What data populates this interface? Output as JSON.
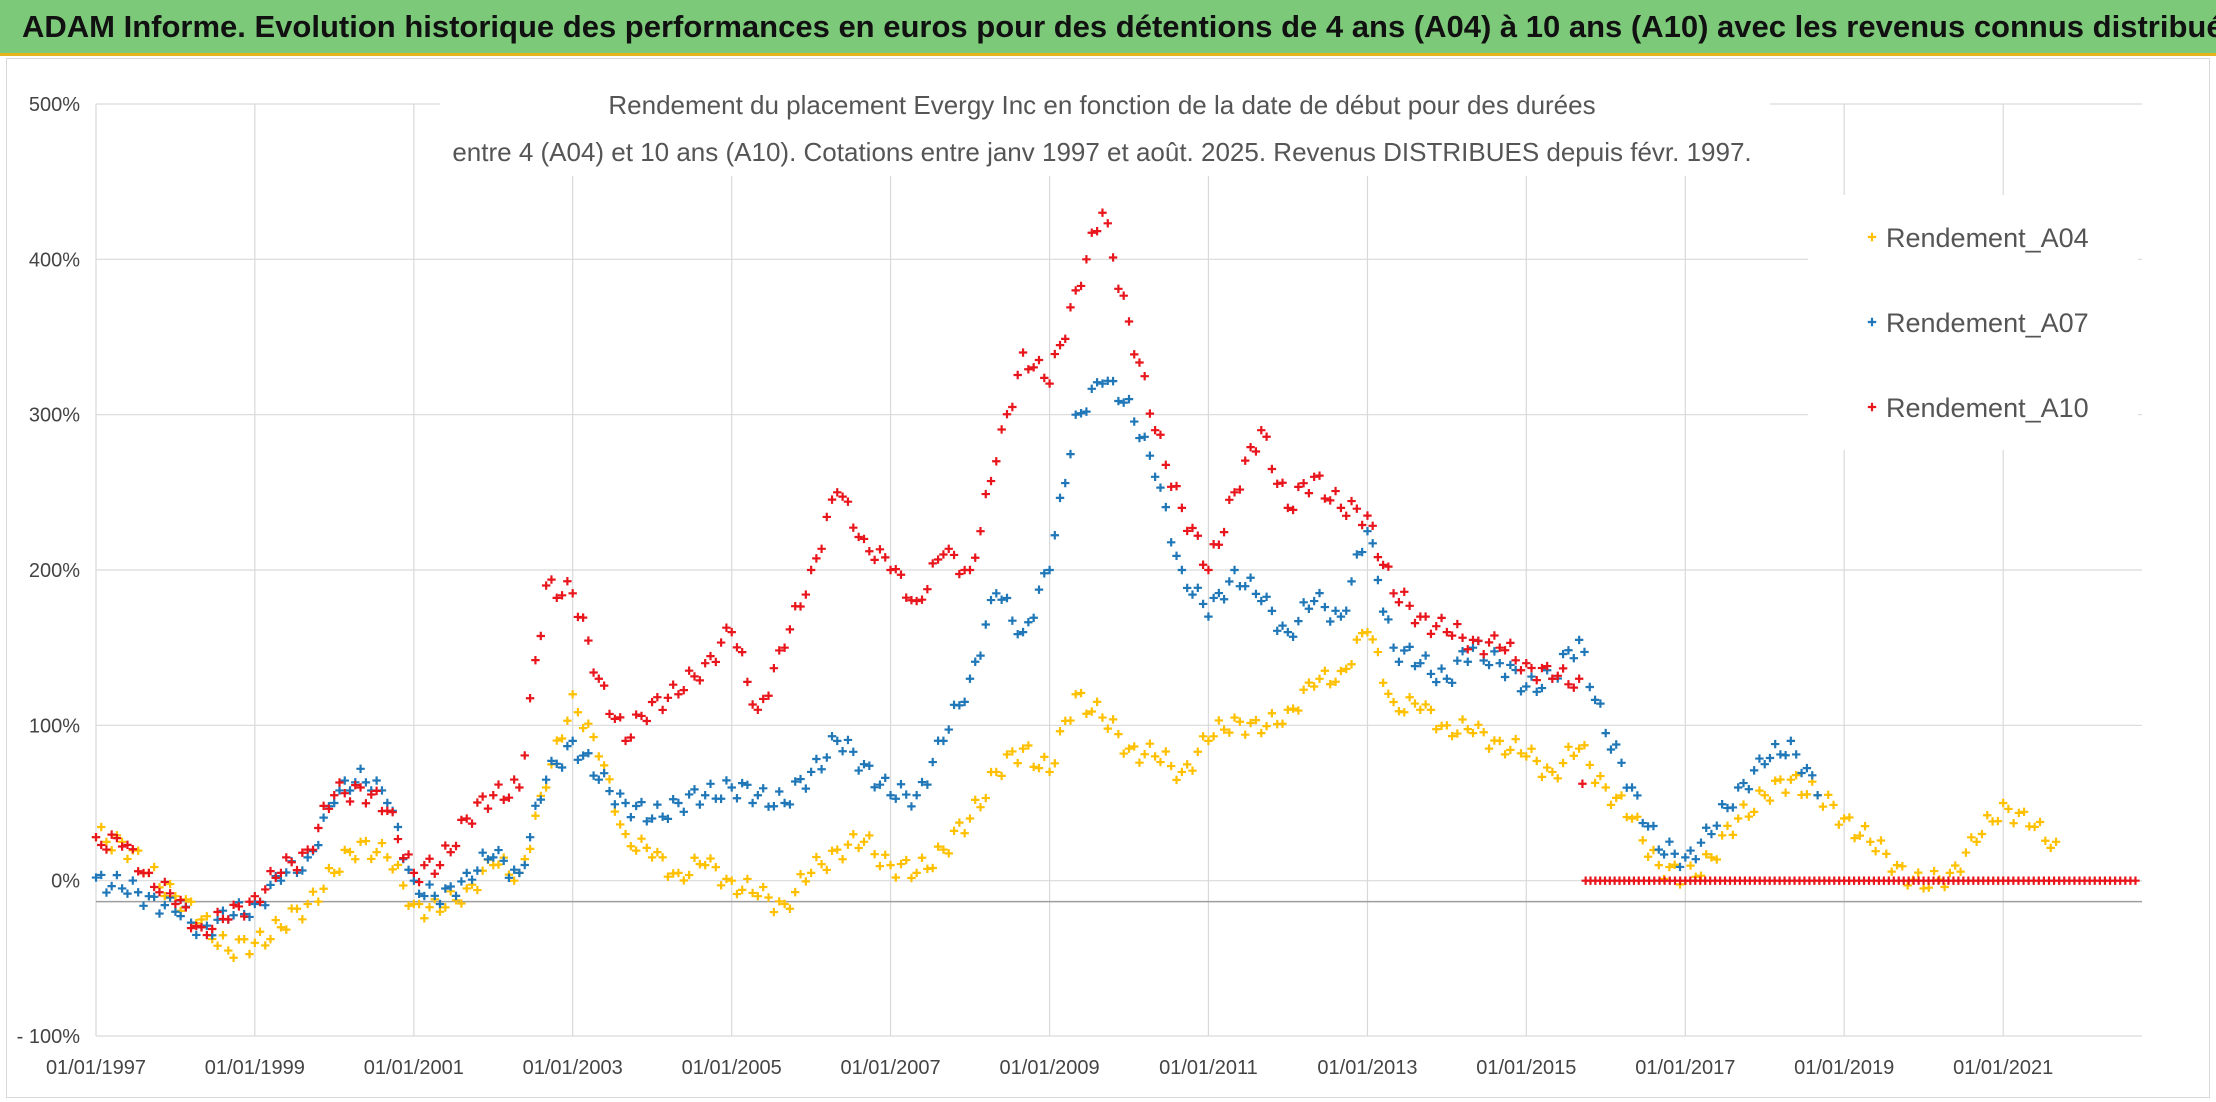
{
  "header": {
    "title": "ADAM Informe. Evolution historique des performances en euros pour des détentions de 4 ans (A04) à 10 ans (A10) avec les revenus connus distribués"
  },
  "chart_data": {
    "type": "scatter",
    "title_lines": [
      "Rendement du placement Evergy Inc en fonction de la date de début pour des durées",
      "entre 4 (A04) et 10 ans (A10). Cotations entre janv 1997 et août. 2025. Revenus DISTRIBUES depuis févr. 1997."
    ],
    "xlabel": "",
    "ylabel": "",
    "x_range": [
      "1997-01-01",
      "2022-10-01"
    ],
    "ylim": [
      -100,
      500
    ],
    "y_ticks": [
      -100,
      0,
      100,
      200,
      300,
      400,
      500
    ],
    "y_tick_labels": [
      "- 100%",
      "0%",
      "100%",
      "200%",
      "300%",
      "400%",
      "500%"
    ],
    "x_ticks": [
      "1997-01-01",
      "1999-01-01",
      "2001-01-01",
      "2003-01-01",
      "2005-01-01",
      "2007-01-01",
      "2009-01-01",
      "2011-01-01",
      "2013-01-01",
      "2015-01-01",
      "2017-01-01",
      "2019-01-01",
      "2021-01-01"
    ],
    "x_tick_labels": [
      "01/01/1997",
      "01/01/1999",
      "01/01/2001",
      "01/01/2003",
      "01/01/2005",
      "01/01/2007",
      "01/01/2009",
      "01/01/2011",
      "01/01/2013",
      "01/01/2015",
      "01/01/2017",
      "01/01/2019",
      "01/01/2021"
    ],
    "grid": true,
    "legend_position": "top-right",
    "marker": "+",
    "series": [
      {
        "name": "Rendement_A04",
        "color": "#ffc000",
        "points": [
          [
            "1997-01-01",
            28
          ],
          [
            "1997-05-01",
            25
          ],
          [
            "1997-09-01",
            5
          ],
          [
            "1998-01-01",
            -10
          ],
          [
            "1998-05-01",
            -25
          ],
          [
            "1998-09-01",
            -45
          ],
          [
            "1999-01-01",
            -40
          ],
          [
            "1999-05-01",
            -30
          ],
          [
            "1999-09-01",
            -15
          ],
          [
            "2000-01-01",
            5
          ],
          [
            "2000-05-01",
            25
          ],
          [
            "2000-09-01",
            15
          ],
          [
            "2001-01-01",
            -15
          ],
          [
            "2001-05-01",
            -20
          ],
          [
            "2001-09-01",
            -5
          ],
          [
            "2002-01-01",
            10
          ],
          [
            "2002-05-01",
            5
          ],
          [
            "2002-09-01",
            60
          ],
          [
            "2003-01-01",
            120
          ],
          [
            "2003-05-01",
            80
          ],
          [
            "2003-09-01",
            30
          ],
          [
            "2004-01-01",
            15
          ],
          [
            "2004-05-01",
            5
          ],
          [
            "2004-09-01",
            10
          ],
          [
            "2005-01-01",
            0
          ],
          [
            "2005-05-01",
            -10
          ],
          [
            "2005-09-01",
            -15
          ],
          [
            "2006-01-01",
            5
          ],
          [
            "2006-05-01",
            20
          ],
          [
            "2006-09-01",
            25
          ],
          [
            "2007-01-01",
            10
          ],
          [
            "2007-05-01",
            5
          ],
          [
            "2007-09-01",
            20
          ],
          [
            "2008-01-01",
            40
          ],
          [
            "2008-05-01",
            70
          ],
          [
            "2008-09-01",
            85
          ],
          [
            "2009-01-01",
            70
          ],
          [
            "2009-05-01",
            120
          ],
          [
            "2009-09-01",
            105
          ],
          [
            "2010-01-01",
            85
          ],
          [
            "2010-05-01",
            80
          ],
          [
            "2010-09-01",
            70
          ],
          [
            "2011-01-01",
            90
          ],
          [
            "2011-05-01",
            105
          ],
          [
            "2011-09-01",
            95
          ],
          [
            "2012-01-01",
            110
          ],
          [
            "2012-05-01",
            125
          ],
          [
            "2012-09-01",
            135
          ],
          [
            "2013-01-01",
            160
          ],
          [
            "2013-05-01",
            115
          ],
          [
            "2013-09-01",
            110
          ],
          [
            "2014-01-01",
            100
          ],
          [
            "2014-05-01",
            95
          ],
          [
            "2014-09-01",
            90
          ],
          [
            "2015-01-01",
            80
          ],
          [
            "2015-05-01",
            70
          ],
          [
            "2015-09-01",
            85
          ],
          [
            "2016-01-01",
            60
          ],
          [
            "2016-05-01",
            40
          ],
          [
            "2016-09-01",
            10
          ],
          [
            "2017-01-01",
            0
          ],
          [
            "2017-05-01",
            15
          ],
          [
            "2017-09-01",
            40
          ],
          [
            "2018-01-01",
            55
          ],
          [
            "2018-05-01",
            65
          ],
          [
            "2018-09-01",
            55
          ],
          [
            "2019-01-01",
            40
          ],
          [
            "2019-05-01",
            25
          ],
          [
            "2019-09-01",
            10
          ],
          [
            "2020-01-01",
            -5
          ],
          [
            "2020-05-01",
            5
          ],
          [
            "2020-09-01",
            25
          ],
          [
            "2021-01-01",
            50
          ],
          [
            "2021-05-01",
            35
          ],
          [
            "2021-09-01",
            25
          ]
        ]
      },
      {
        "name": "Rendement_A07",
        "color": "#1f77b8",
        "points": [
          [
            "1997-01-01",
            2
          ],
          [
            "1997-05-01",
            -5
          ],
          [
            "1997-09-01",
            -10
          ],
          [
            "1998-01-01",
            -20
          ],
          [
            "1998-05-01",
            -30
          ],
          [
            "1998-09-01",
            -25
          ],
          [
            "1999-01-01",
            -15
          ],
          [
            "1999-05-01",
            0
          ],
          [
            "1999-09-01",
            15
          ],
          [
            "2000-01-01",
            50
          ],
          [
            "2000-05-01",
            72
          ],
          [
            "2000-09-01",
            50
          ],
          [
            "2001-01-01",
            0
          ],
          [
            "2001-05-01",
            -15
          ],
          [
            "2001-09-01",
            5
          ],
          [
            "2002-01-01",
            15
          ],
          [
            "2002-05-01",
            5
          ],
          [
            "2002-09-01",
            65
          ],
          [
            "2003-01-01",
            90
          ],
          [
            "2003-05-01",
            65
          ],
          [
            "2003-09-01",
            50
          ],
          [
            "2004-01-01",
            40
          ],
          [
            "2004-05-01",
            50
          ],
          [
            "2004-09-01",
            55
          ],
          [
            "2005-01-01",
            60
          ],
          [
            "2005-05-01",
            55
          ],
          [
            "2005-09-01",
            50
          ],
          [
            "2006-01-01",
            70
          ],
          [
            "2006-05-01",
            90
          ],
          [
            "2006-09-01",
            75
          ],
          [
            "2007-01-01",
            55
          ],
          [
            "2007-05-01",
            55
          ],
          [
            "2007-09-01",
            90
          ],
          [
            "2008-01-01",
            130
          ],
          [
            "2008-05-01",
            185
          ],
          [
            "2008-09-01",
            160
          ],
          [
            "2009-01-01",
            200
          ],
          [
            "2009-05-01",
            300
          ],
          [
            "2009-09-01",
            320
          ],
          [
            "2010-01-01",
            310
          ],
          [
            "2010-05-01",
            260
          ],
          [
            "2010-09-01",
            200
          ],
          [
            "2011-01-01",
            170
          ],
          [
            "2011-05-01",
            200
          ],
          [
            "2011-09-01",
            180
          ],
          [
            "2012-01-01",
            160
          ],
          [
            "2012-05-01",
            180
          ],
          [
            "2012-09-01",
            170
          ],
          [
            "2013-01-01",
            225
          ],
          [
            "2013-05-01",
            150
          ],
          [
            "2013-09-01",
            140
          ],
          [
            "2014-01-01",
            130
          ],
          [
            "2014-05-01",
            150
          ],
          [
            "2014-09-01",
            140
          ],
          [
            "2015-01-01",
            125
          ],
          [
            "2015-05-01",
            130
          ],
          [
            "2015-09-01",
            155
          ],
          [
            "2016-01-01",
            95
          ],
          [
            "2016-05-01",
            60
          ],
          [
            "2016-09-01",
            20
          ],
          [
            "2017-01-01",
            15
          ],
          [
            "2017-05-01",
            30
          ],
          [
            "2017-09-01",
            60
          ],
          [
            "2018-01-01",
            75
          ],
          [
            "2018-05-01",
            90
          ],
          [
            "2018-09-01",
            55
          ]
        ]
      },
      {
        "name": "Rendement_A10",
        "color": "#e8161c",
        "points": [
          [
            "1997-01-01",
            28
          ],
          [
            "1997-05-01",
            22
          ],
          [
            "1997-09-01",
            5
          ],
          [
            "1998-01-01",
            -15
          ],
          [
            "1998-05-01",
            -30
          ],
          [
            "1998-09-01",
            -25
          ],
          [
            "1999-01-01",
            -10
          ],
          [
            "1999-05-01",
            5
          ],
          [
            "1999-09-01",
            20
          ],
          [
            "2000-01-01",
            55
          ],
          [
            "2000-05-01",
            60
          ],
          [
            "2000-09-01",
            45
          ],
          [
            "2001-01-01",
            5
          ],
          [
            "2001-05-01",
            10
          ],
          [
            "2001-09-01",
            40
          ],
          [
            "2002-01-01",
            55
          ],
          [
            "2002-05-01",
            60
          ],
          [
            "2002-09-01",
            190
          ],
          [
            "2003-01-01",
            185
          ],
          [
            "2003-05-01",
            130
          ],
          [
            "2003-09-01",
            90
          ],
          [
            "2004-01-01",
            115
          ],
          [
            "2004-05-01",
            120
          ],
          [
            "2004-09-01",
            140
          ],
          [
            "2005-01-01",
            160
          ],
          [
            "2005-05-01",
            110
          ],
          [
            "2005-09-01",
            150
          ],
          [
            "2006-01-01",
            200
          ],
          [
            "2006-05-01",
            250
          ],
          [
            "2006-09-01",
            220
          ],
          [
            "2007-01-01",
            200
          ],
          [
            "2007-05-01",
            180
          ],
          [
            "2007-09-01",
            210
          ],
          [
            "2008-01-01",
            200
          ],
          [
            "2008-05-01",
            270
          ],
          [
            "2008-09-01",
            340
          ],
          [
            "2009-01-01",
            320
          ],
          [
            "2009-05-01",
            380
          ],
          [
            "2009-09-01",
            430
          ],
          [
            "2010-01-01",
            360
          ],
          [
            "2010-05-01",
            290
          ],
          [
            "2010-09-01",
            240
          ],
          [
            "2011-01-01",
            200
          ],
          [
            "2011-05-01",
            250
          ],
          [
            "2011-09-01",
            290
          ],
          [
            "2012-01-01",
            240
          ],
          [
            "2012-05-01",
            260
          ],
          [
            "2012-09-01",
            240
          ],
          [
            "2013-01-01",
            235
          ],
          [
            "2013-05-01",
            185
          ],
          [
            "2013-09-01",
            170
          ],
          [
            "2014-01-01",
            160
          ],
          [
            "2014-05-01",
            155
          ],
          [
            "2014-09-01",
            150
          ],
          [
            "2015-01-01",
            140
          ],
          [
            "2015-05-01",
            130
          ],
          [
            "2015-09-01",
            130
          ],
          [
            "2015-10-01",
            0
          ],
          [
            "2016-06-01",
            0
          ],
          [
            "2017-01-01",
            0
          ],
          [
            "2018-01-01",
            0
          ],
          [
            "2019-01-01",
            0
          ],
          [
            "2020-01-01",
            0
          ],
          [
            "2021-01-01",
            0
          ],
          [
            "2022-09-01",
            0
          ]
        ]
      }
    ]
  }
}
